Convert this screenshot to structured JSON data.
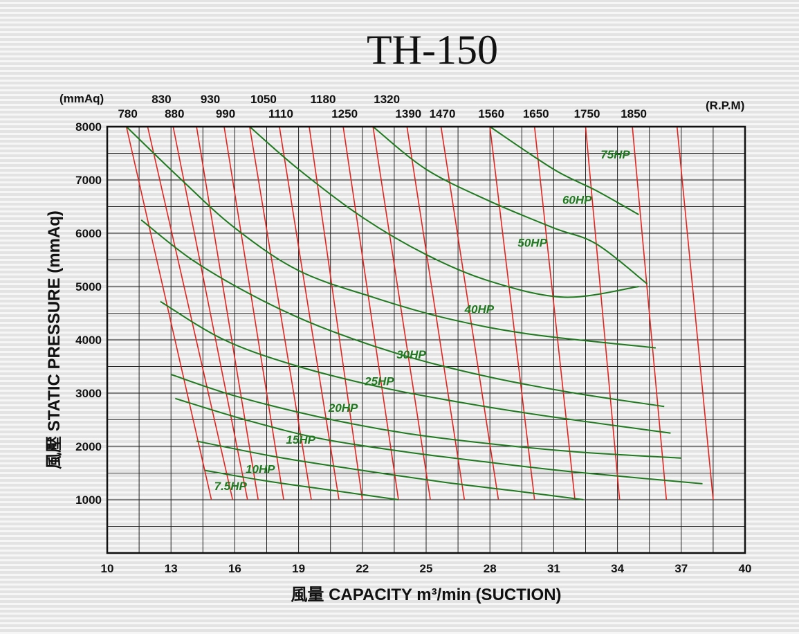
{
  "chart_data": {
    "type": "line",
    "title": "TH-150",
    "xlabel": "風量  CAPACITY  m³/min (SUCTION)",
    "ylabel": "風壓  STATIC  PRESSURE  (mmAq)",
    "ylabel_unit_top": "(mmAq)",
    "rpm_unit": "(R.P.M)",
    "xlim": [
      10,
      40
    ],
    "ylim": [
      0,
      8000
    ],
    "x_ticks": [
      10,
      13,
      16,
      19,
      22,
      25,
      28,
      31,
      34,
      37,
      40
    ],
    "y_ticks": [
      1000,
      2000,
      3000,
      4000,
      5000,
      6000,
      7000,
      8000
    ],
    "rpm_series": [
      {
        "name": "780",
        "points": [
          [
            10.9,
            8000
          ],
          [
            14.9,
            1000
          ]
        ]
      },
      {
        "name": "830",
        "points": [
          [
            11.9,
            8000
          ],
          [
            15.9,
            1000
          ]
        ]
      },
      {
        "name": "880",
        "points": [
          [
            13.1,
            8000
          ],
          [
            16.6,
            1000
          ]
        ]
      },
      {
        "name": "930",
        "points": [
          [
            14.2,
            8000
          ],
          [
            17.1,
            1000
          ]
        ]
      },
      {
        "name": "990",
        "points": [
          [
            15.5,
            8000
          ],
          [
            18.3,
            1000
          ]
        ]
      },
      {
        "name": "1050",
        "points": [
          [
            16.7,
            8000
          ],
          [
            19.6,
            1000
          ]
        ]
      },
      {
        "name": "1110",
        "points": [
          [
            18.1,
            8000
          ],
          [
            20.9,
            1000
          ]
        ]
      },
      {
        "name": "1180",
        "points": [
          [
            19.5,
            8000
          ],
          [
            22.0,
            1000
          ]
        ]
      },
      {
        "name": "1250",
        "points": [
          [
            21.1,
            8000
          ],
          [
            23.7,
            1000
          ]
        ]
      },
      {
        "name": "1320",
        "points": [
          [
            22.5,
            8000
          ],
          [
            25.2,
            1000
          ]
        ]
      },
      {
        "name": "1390",
        "points": [
          [
            24.1,
            8000
          ],
          [
            26.8,
            1000
          ]
        ]
      },
      {
        "name": "1470",
        "points": [
          [
            25.7,
            8000
          ],
          [
            28.4,
            1000
          ]
        ]
      },
      {
        "name": "1560",
        "points": [
          [
            28.0,
            8000
          ],
          [
            30.1,
            1000
          ]
        ]
      },
      {
        "name": "1650",
        "points": [
          [
            30.1,
            8000
          ],
          [
            32.0,
            1000
          ]
        ]
      },
      {
        "name": "1750",
        "points": [
          [
            32.5,
            8000
          ],
          [
            34.1,
            1000
          ]
        ]
      },
      {
        "name": "1850",
        "points": [
          [
            34.7,
            8000
          ],
          [
            36.3,
            1000
          ]
        ]
      },
      {
        "name": "",
        "points": [
          [
            36.8,
            8000
          ],
          [
            38.5,
            1000
          ]
        ]
      }
    ],
    "hp_series": [
      {
        "name": "7.5HP",
        "points": [
          [
            14.6,
            1550
          ],
          [
            17.5,
            1350
          ],
          [
            20.5,
            1180
          ],
          [
            23.7,
            1000
          ]
        ]
      },
      {
        "name": "10HP",
        "points": [
          [
            14.2,
            2100
          ],
          [
            18.0,
            1800
          ],
          [
            22.0,
            1550
          ],
          [
            26.0,
            1320
          ],
          [
            29.5,
            1150
          ],
          [
            32.4,
            1000
          ]
        ]
      },
      {
        "name": "15HP",
        "points": [
          [
            13.2,
            2900
          ],
          [
            16.5,
            2500
          ],
          [
            20.0,
            2150
          ],
          [
            24.0,
            1900
          ],
          [
            28.0,
            1700
          ],
          [
            32.0,
            1520
          ],
          [
            38.0,
            1300
          ]
        ]
      },
      {
        "name": "20HP",
        "points": [
          [
            13.0,
            3350
          ],
          [
            16.0,
            2950
          ],
          [
            20.0,
            2550
          ],
          [
            24.0,
            2250
          ],
          [
            28.0,
            2050
          ],
          [
            32.0,
            1900
          ],
          [
            37.0,
            1780
          ]
        ]
      },
      {
        "name": "25HP",
        "points": [
          [
            12.5,
            4720
          ],
          [
            15.5,
            4000
          ],
          [
            19.0,
            3500
          ],
          [
            23.0,
            3100
          ],
          [
            27.0,
            2800
          ],
          [
            31.0,
            2550
          ],
          [
            36.5,
            2250
          ]
        ]
      },
      {
        "name": "30HP",
        "points": [
          [
            11.6,
            6250
          ],
          [
            14.0,
            5500
          ],
          [
            17.0,
            4800
          ],
          [
            20.0,
            4250
          ],
          [
            24.0,
            3700
          ],
          [
            28.0,
            3300
          ],
          [
            32.0,
            3000
          ],
          [
            36.2,
            2750
          ]
        ]
      },
      {
        "name": "40HP",
        "points": [
          [
            10.9,
            8000
          ],
          [
            13.5,
            7000
          ],
          [
            16.0,
            6100
          ],
          [
            19.0,
            5300
          ],
          [
            22.5,
            4800
          ],
          [
            26.0,
            4400
          ],
          [
            30.0,
            4100
          ],
          [
            35.8,
            3850
          ]
        ]
      },
      {
        "name": "50HP",
        "points": [
          [
            16.7,
            8000
          ],
          [
            19.0,
            7200
          ],
          [
            22.0,
            6300
          ],
          [
            25.0,
            5600
          ],
          [
            28.0,
            5100
          ],
          [
            31.5,
            4800
          ],
          [
            35.0,
            5000
          ]
        ]
      },
      {
        "name": "60HP",
        "points": [
          [
            22.5,
            8000
          ],
          [
            25.0,
            7200
          ],
          [
            28.0,
            6600
          ],
          [
            31.0,
            6100
          ],
          [
            33.0,
            5800
          ],
          [
            35.4,
            5050
          ]
        ]
      },
      {
        "name": "75HP",
        "points": [
          [
            28.0,
            8000
          ],
          [
            31.0,
            7200
          ],
          [
            33.0,
            6800
          ],
          [
            35.0,
            6350
          ]
        ]
      }
    ],
    "hp_labels": [
      {
        "text": "75HP",
        "x": 33.9,
        "y": 7400
      },
      {
        "text": "60HP",
        "x": 32.1,
        "y": 6550
      },
      {
        "text": "50HP",
        "x": 30.0,
        "y": 5750
      },
      {
        "text": "40HP",
        "x": 27.5,
        "y": 4500
      },
      {
        "text": "30HP",
        "x": 24.3,
        "y": 3650
      },
      {
        "text": "25HP",
        "x": 22.8,
        "y": 3150
      },
      {
        "text": "20HP",
        "x": 21.1,
        "y": 2650
      },
      {
        "text": "15HP",
        "x": 19.1,
        "y": 2050
      },
      {
        "text": "10HP",
        "x": 17.2,
        "y": 1500
      },
      {
        "text": "7.5HP",
        "x": 15.8,
        "y": 1180
      }
    ],
    "rpm_labels_top": [
      "830",
      "930",
      "1050",
      "1180",
      "1320"
    ],
    "rpm_labels_bottom": [
      "780",
      "880",
      "990",
      "1110",
      "1250",
      "1390",
      "1470",
      "1560",
      "1650",
      "1750",
      "1850"
    ],
    "grid": true,
    "colors": {
      "rpm": "#e0241f",
      "hp": "#1f7a1f",
      "grid": "#222222"
    }
  }
}
